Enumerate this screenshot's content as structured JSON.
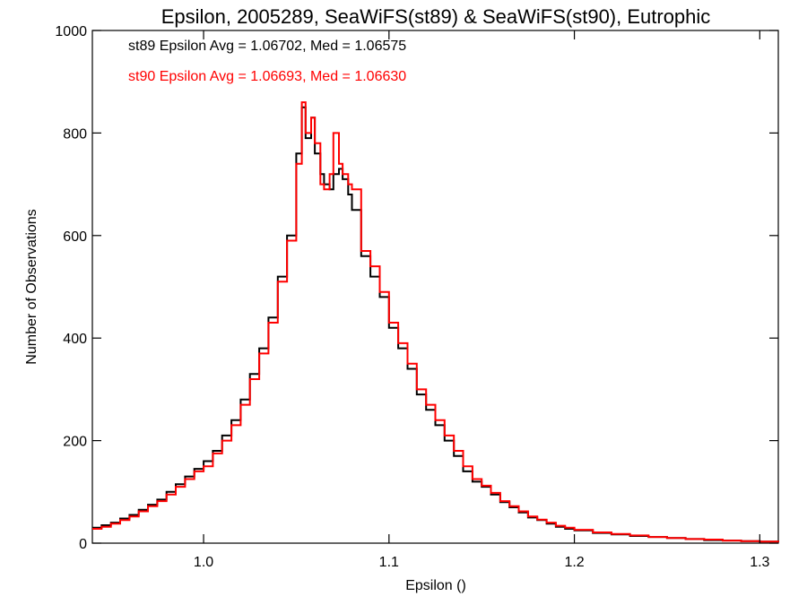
{
  "chart_data": {
    "type": "line",
    "step": true,
    "title": "Epsilon, 2005289, SeaWiFS(st89) & SeaWiFS(st90), Eutrophic",
    "xlabel": "Epsilon ()",
    "ylabel": "Number of Observations",
    "xlim": [
      0.94,
      1.31
    ],
    "ylim": [
      0,
      1000
    ],
    "xticks": [
      1.0,
      1.1,
      1.2,
      1.3
    ],
    "xtick_labels": [
      "1.0",
      "1.1",
      "1.2",
      "1.3"
    ],
    "yticks": [
      0,
      200,
      400,
      600,
      800,
      1000
    ],
    "ytick_labels": [
      "0",
      "200",
      "400",
      "600",
      "800",
      "1000"
    ],
    "grid": false,
    "annotations": [
      {
        "text": "st89 Epsilon Avg = 1.06702, Med = 1.06575",
        "color": "#000000"
      },
      {
        "text": "st90 Epsilon Avg = 1.06693, Med = 1.06630",
        "color": "#ff0000"
      }
    ],
    "series": [
      {
        "name": "st89",
        "color": "#000000",
        "x": [
          0.94,
          0.945,
          0.95,
          0.955,
          0.96,
          0.965,
          0.97,
          0.975,
          0.98,
          0.985,
          0.99,
          0.995,
          1.0,
          1.005,
          1.01,
          1.015,
          1.02,
          1.025,
          1.03,
          1.035,
          1.04,
          1.045,
          1.05,
          1.053,
          1.055,
          1.058,
          1.06,
          1.063,
          1.065,
          1.068,
          1.07,
          1.073,
          1.075,
          1.078,
          1.08,
          1.085,
          1.09,
          1.095,
          1.1,
          1.105,
          1.11,
          1.115,
          1.12,
          1.125,
          1.13,
          1.135,
          1.14,
          1.145,
          1.15,
          1.155,
          1.16,
          1.165,
          1.17,
          1.175,
          1.18,
          1.185,
          1.19,
          1.195,
          1.2,
          1.21,
          1.22,
          1.23,
          1.24,
          1.25,
          1.26,
          1.27,
          1.28,
          1.29,
          1.3,
          1.31
        ],
        "y": [
          30,
          35,
          40,
          48,
          55,
          65,
          75,
          85,
          100,
          115,
          130,
          145,
          160,
          180,
          210,
          240,
          280,
          330,
          380,
          440,
          520,
          600,
          760,
          850,
          790,
          830,
          760,
          720,
          700,
          690,
          720,
          730,
          710,
          680,
          650,
          560,
          520,
          480,
          420,
          380,
          340,
          290,
          260,
          230,
          200,
          170,
          140,
          120,
          110,
          95,
          80,
          70,
          60,
          50,
          45,
          38,
          32,
          28,
          25,
          20,
          17,
          14,
          12,
          10,
          8,
          6,
          5,
          4,
          3,
          2
        ]
      },
      {
        "name": "st90",
        "color": "#ff0000",
        "x": [
          0.94,
          0.945,
          0.95,
          0.955,
          0.96,
          0.965,
          0.97,
          0.975,
          0.98,
          0.985,
          0.99,
          0.995,
          1.0,
          1.005,
          1.01,
          1.015,
          1.02,
          1.025,
          1.03,
          1.035,
          1.04,
          1.045,
          1.05,
          1.053,
          1.055,
          1.058,
          1.06,
          1.063,
          1.065,
          1.068,
          1.07,
          1.073,
          1.075,
          1.078,
          1.08,
          1.085,
          1.09,
          1.095,
          1.1,
          1.105,
          1.11,
          1.115,
          1.12,
          1.125,
          1.13,
          1.135,
          1.14,
          1.145,
          1.15,
          1.155,
          1.16,
          1.165,
          1.17,
          1.175,
          1.18,
          1.185,
          1.19,
          1.195,
          1.2,
          1.21,
          1.22,
          1.23,
          1.24,
          1.25,
          1.26,
          1.27,
          1.28,
          1.29,
          1.3,
          1.31
        ],
        "y": [
          28,
          32,
          38,
          45,
          52,
          62,
          72,
          82,
          95,
          110,
          125,
          140,
          150,
          175,
          200,
          230,
          270,
          320,
          370,
          430,
          510,
          590,
          740,
          860,
          800,
          830,
          780,
          700,
          690,
          720,
          800,
          740,
          720,
          700,
          690,
          570,
          540,
          490,
          430,
          390,
          350,
          300,
          270,
          240,
          210,
          180,
          150,
          125,
          112,
          98,
          82,
          72,
          62,
          52,
          46,
          40,
          34,
          30,
          26,
          21,
          18,
          15,
          12,
          10,
          8,
          7,
          5,
          4,
          3,
          2
        ]
      }
    ]
  }
}
